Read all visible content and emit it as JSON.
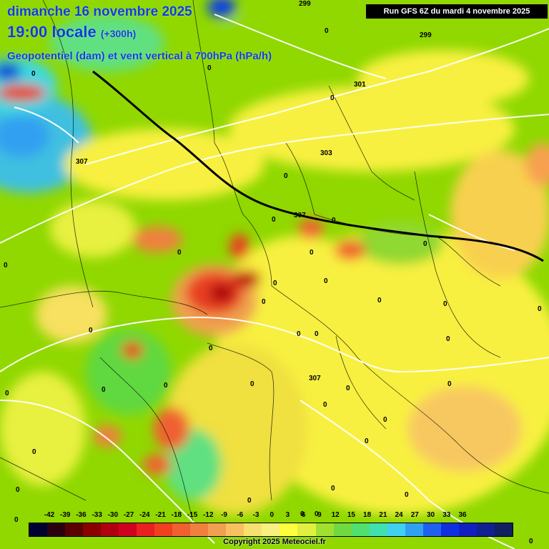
{
  "title": {
    "line1": "dimanche 16 novembre 2025",
    "line2": "19:00 locale",
    "line2_extra": "(+300h)",
    "line3": "Geopotentiel (dam) et vent vertical à 700hPa (hPa/h)"
  },
  "run_label": "Run GFS 6Z du mardi 4 novembre 2025",
  "copyright": "Copyright 2025 Meteociel.fr",
  "legend": {
    "ticks": [
      "-42",
      "-39",
      "-36",
      "-33",
      "-30",
      "-27",
      "-24",
      "-21",
      "-18",
      "-15",
      "-12",
      "-9",
      "-6",
      "-3",
      "0",
      "3",
      "6",
      "9",
      "12",
      "15",
      "18",
      "21",
      "24",
      "27",
      "30",
      "33",
      "36"
    ],
    "colors": [
      "#000030",
      "#2a0010",
      "#5a0000",
      "#8a0000",
      "#b00010",
      "#d00020",
      "#e82020",
      "#f04020",
      "#f06030",
      "#f08040",
      "#f0a050",
      "#f8c060",
      "#f8e070",
      "#f8f080",
      "#ffff40",
      "#e0f040",
      "#a0e030",
      "#70d840",
      "#50e070",
      "#40e0b0",
      "#40d0f0",
      "#30a0f0",
      "#2060f0",
      "#1030e0",
      "#1020c0",
      "#102090",
      "#102060"
    ]
  },
  "contours": {
    "labels": [
      "299",
      "299",
      "301",
      "303",
      "307",
      "307",
      "307"
    ]
  },
  "zero_labels": [
    "0",
    "0",
    "0",
    "0",
    "0",
    "0",
    "0",
    "0",
    "0",
    "0",
    "0",
    "0",
    "0",
    "0",
    "0",
    "0",
    "0",
    "0",
    "0",
    "0",
    "0",
    "0",
    "0",
    "0",
    "0",
    "0",
    "0",
    "0",
    "0",
    "0",
    "0",
    "0",
    "0",
    "0",
    "0",
    "0",
    "0",
    "0",
    "0",
    "0"
  ],
  "colors": {
    "title": "#0a3fd8",
    "background_green": "#8fd400",
    "yellow": "#f8f040",
    "red": "#e02010",
    "blue": "#2090f0"
  }
}
